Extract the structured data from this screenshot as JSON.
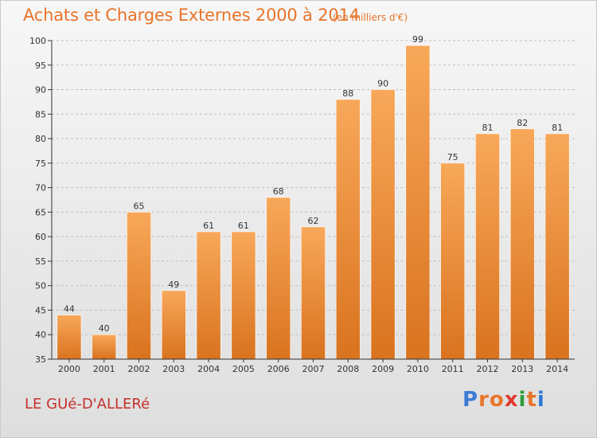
{
  "header": {
    "title": "Achats et Charges Externes 2000 à 2014",
    "subtitle": "(en milliers d'€)"
  },
  "footer": {
    "place": "LE GUé-D'ALLERé",
    "logo_letters": [
      "P",
      "r",
      "o",
      "x",
      "i",
      "t",
      "i"
    ],
    "logo_colors": [
      "#3b7bd4",
      "#e8742a",
      "#e8742a",
      "#e03a2e",
      "#2e9e3a",
      "#e8742a",
      "#2e7ad4"
    ]
  },
  "colors": {
    "bar_top": "#f8a85a",
    "bar_bottom": "#d9731f",
    "grid": "#bdbdbd",
    "axis": "#333333"
  },
  "chart_data": {
    "type": "bar",
    "title": "Achats et Charges Externes 2000 à 2014",
    "subtitle": "(en milliers d'€)",
    "categories": [
      "2000",
      "2001",
      "2002",
      "2003",
      "2004",
      "2005",
      "2006",
      "2007",
      "2008",
      "2009",
      "2010",
      "2011",
      "2012",
      "2013",
      "2014"
    ],
    "values": [
      44,
      40,
      65,
      49,
      61,
      61,
      68,
      62,
      88,
      90,
      99,
      75,
      81,
      82,
      81
    ],
    "ylim": [
      35,
      100
    ],
    "yticks": [
      35,
      40,
      45,
      50,
      55,
      60,
      65,
      70,
      75,
      80,
      85,
      90,
      95,
      100
    ],
    "grid": true,
    "xlabel": "",
    "ylabel": ""
  }
}
